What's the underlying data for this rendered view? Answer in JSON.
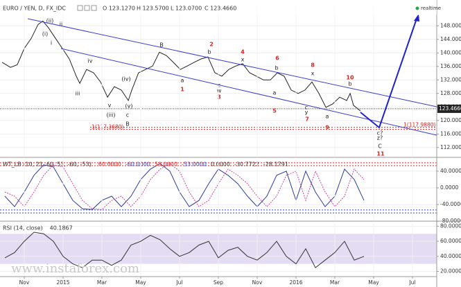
{
  "header": {
    "symbol": "EURO / YEN, D, FX_IDC",
    "ohlc": [
      "O 123.1270",
      "H 123.5700",
      "L 123.0700",
      "C 123.4660"
    ],
    "status": "realtime",
    "watermark": "www.instaforex.com"
  },
  "chart_data": [
    {
      "type": "line",
      "xlim": [
        -1.25,
        21.25
      ],
      "ylim": [
        109.5,
        154
      ],
      "yticks": [
        {
          "value": 112,
          "label": "112.0000"
        },
        {
          "value": 116,
          "label": "116.0000"
        },
        {
          "value": 120,
          "label": "120.0000"
        },
        {
          "value": 124,
          "label": "124.0000"
        },
        {
          "value": 128,
          "label": "128.0000"
        },
        {
          "value": 132,
          "label": "132.0000"
        },
        {
          "value": 136,
          "label": "136.0000"
        },
        {
          "value": 140,
          "label": "140.0000"
        },
        {
          "value": 144,
          "label": "144.0000"
        },
        {
          "value": 148,
          "label": "148.0000"
        }
      ],
      "grid": true,
      "x": [
        -1.14,
        -0.71,
        -0.36,
        0,
        0.36,
        0.71,
        0.96,
        1.25,
        1.61,
        1.96,
        2.32,
        2.68,
        2.86,
        3.21,
        3.57,
        3.93,
        4.29,
        4.64,
        5.0,
        5.36,
        5.54,
        5.89,
        6.25,
        6.61,
        6.96,
        7.32,
        7.68,
        8.04,
        8.39,
        8.75,
        9.11,
        9.46,
        9.82,
        10.18,
        10.54,
        10.89,
        11.25,
        11.61,
        11.96,
        12.32,
        12.68,
        13.04,
        13.39,
        13.75,
        14.11,
        14.46,
        14.82,
        15.18,
        15.54,
        15.89,
        16.25,
        16.61,
        16.79,
        16.96,
        17.32
      ],
      "series": [
        {
          "name": "EURO / YEN",
          "color": "#222222",
          "values": [
            137.2,
            135.7,
            136.5,
            141.3,
            144.3,
            148.4,
            149.4,
            147.4,
            144.3,
            141.3,
            138.2,
            133.1,
            131.0,
            135.1,
            134.1,
            131.4,
            126.9,
            130.0,
            129.0,
            125.9,
            129.0,
            134.1,
            135.1,
            136.1,
            140.2,
            139.2,
            137.2,
            135.1,
            136.1,
            137.2,
            138.2,
            138.8,
            134.1,
            133.1,
            135.1,
            136.1,
            136.8,
            134.1,
            133.1,
            132.0,
            132.0,
            134.1,
            133.1,
            129.0,
            128.0,
            129.0,
            131.4,
            128.0,
            123.9,
            124.9,
            126.9,
            125.9,
            128.0,
            124.5,
            122.8
          ]
        }
      ],
      "last": {
        "value": 123.466,
        "label": "123.4660"
      },
      "levels": [
        {
          "value": 117.368,
          "label": "1(117.3680)",
          "color": "#e02020"
        },
        {
          "value": 117.988,
          "label": "1(117.9880)",
          "color": "#e02020"
        }
      ],
      "annotations": [
        {
          "text": "(ii)",
          "color": "#222222"
        },
        {
          "text": "(i)",
          "color": "#222222"
        },
        {
          "text": "ii",
          "color": "#222222"
        },
        {
          "text": "i",
          "color": "#222222"
        },
        {
          "text": "iii",
          "color": "#222222"
        },
        {
          "text": "iv",
          "color": "#222222"
        },
        {
          "text": "(iii)",
          "color": "#222222"
        },
        {
          "text": "(iv)",
          "color": "#222222"
        },
        {
          "text": "v",
          "color": "#222222"
        },
        {
          "text": "(v)",
          "color": "#222222"
        },
        {
          "text": "c",
          "color": "#222222"
        },
        {
          "text": "B",
          "color": "#222222"
        },
        {
          "text": "B",
          "color": "#222222"
        },
        {
          "text": "2",
          "color": "#e02020"
        },
        {
          "text": "b",
          "color": "#222222"
        },
        {
          "text": "a",
          "color": "#222222"
        },
        {
          "text": "1",
          "color": "#e02020"
        },
        {
          "text": "c",
          "color": "#222222"
        },
        {
          "text": "w",
          "color": "#222222"
        },
        {
          "text": "3",
          "color": "#e02020"
        },
        {
          "text": "4",
          "color": "#e02020"
        },
        {
          "text": "x",
          "color": "#222222"
        },
        {
          "text": "6",
          "color": "#e02020"
        },
        {
          "text": "b",
          "color": "#222222"
        },
        {
          "text": "a",
          "color": "#222222"
        },
        {
          "text": "5",
          "color": "#e02020"
        },
        {
          "text": "8",
          "color": "#e02020"
        },
        {
          "text": "x",
          "color": "#222222"
        },
        {
          "text": "c",
          "color": "#222222"
        },
        {
          "text": "y",
          "color": "#222222"
        },
        {
          "text": "7",
          "color": "#e02020"
        },
        {
          "text": "a",
          "color": "#222222"
        },
        {
          "text": "10",
          "color": "#e02020"
        },
        {
          "text": "b",
          "color": "#222222"
        },
        {
          "text": "9",
          "color": "#e02020"
        },
        {
          "text": "c?",
          "color": "#222222"
        },
        {
          "text": "z?",
          "color": "#222222"
        },
        {
          "text": "C",
          "color": "#222222"
        },
        {
          "text": "11",
          "color": "#e02020"
        }
      ]
    },
    {
      "type": "line",
      "title": "WT_LB (10, 21, 60, 53, -60, -53)",
      "readouts": [
        "0.0000",
        "-30.7722",
        "-28.1791"
      ],
      "xlim": [
        -1.25,
        21.25
      ],
      "ylim": [
        -78,
        68
      ],
      "yticks": [
        {
          "value": 40,
          "label": "40.0000"
        },
        {
          "value": 0,
          "label": "0.0000"
        },
        {
          "value": -40,
          "label": "-40.0000"
        },
        {
          "value": -80,
          "label": "-80.0000"
        }
      ],
      "grid": true,
      "levels": [
        {
          "value": 60,
          "label": "60.0000",
          "color": "#e02020"
        },
        {
          "value": -60,
          "label": "-60.0000",
          "color": "#3040c0"
        },
        {
          "value": 53,
          "label": "53.0000",
          "color": "#e02020"
        },
        {
          "value": -53,
          "label": "-53.0000",
          "color": "#3040c0"
        }
      ],
      "x": [
        -1,
        -0.5,
        0,
        0.5,
        1,
        1.5,
        2,
        2.5,
        3,
        3.5,
        4,
        4.5,
        5,
        5.5,
        6,
        6.5,
        7,
        7.5,
        8,
        8.5,
        9,
        9.5,
        10,
        10.5,
        11,
        11.5,
        12,
        12.5,
        13,
        13.5,
        14,
        14.5,
        15,
        15.5,
        16,
        16.5,
        17,
        17.5
      ],
      "series": [
        {
          "name": "WT1",
          "color": "#2b3a9a",
          "dash": false,
          "values": [
            -20,
            -45,
            -10,
            30,
            55,
            50,
            10,
            -30,
            -50,
            -52,
            -30,
            -20,
            -45,
            -20,
            20,
            45,
            58,
            40,
            -10,
            -45,
            -30,
            10,
            45,
            30,
            10,
            -20,
            -45,
            -20,
            30,
            40,
            -30,
            40,
            -10,
            -45,
            -20,
            45,
            20,
            -30
          ]
        },
        {
          "name": "WT2",
          "color": "#d040a0",
          "dash": true,
          "values": [
            -10,
            -20,
            -45,
            -10,
            30,
            55,
            50,
            10,
            -30,
            -50,
            -52,
            -30,
            -20,
            -45,
            -20,
            20,
            45,
            58,
            40,
            -10,
            -45,
            -30,
            10,
            45,
            30,
            10,
            -20,
            -45,
            -20,
            30,
            40,
            -30,
            40,
            -10,
            -45,
            -20,
            45,
            20
          ]
        }
      ]
    },
    {
      "type": "line",
      "title": "RSI (14, close)",
      "readouts": [
        "40.1867"
      ],
      "xlim": [
        -1.25,
        21.25
      ],
      "ylim": [
        14,
        84
      ],
      "yticks": [
        {
          "value": 80,
          "label": "80.0000"
        },
        {
          "value": 60,
          "label": "60.0000"
        },
        {
          "value": 40,
          "label": "40.0000"
        },
        {
          "value": 20,
          "label": "20.0000"
        }
      ],
      "grid": true,
      "band": [
        30,
        70
      ],
      "xticks": [
        {
          "value": 0,
          "label": "Nov"
        },
        {
          "value": 2,
          "label": "2015"
        },
        {
          "value": 4,
          "label": "Mar"
        },
        {
          "value": 6,
          "label": "May"
        },
        {
          "value": 8,
          "label": "Jul"
        },
        {
          "value": 10,
          "label": "Sep"
        },
        {
          "value": 12,
          "label": "Nov"
        },
        {
          "value": 14,
          "label": "2016"
        },
        {
          "value": 16,
          "label": "Mar"
        },
        {
          "value": 18,
          "label": "May"
        },
        {
          "value": 20,
          "label": "Jul"
        }
      ],
      "x": [
        -1,
        -0.5,
        0,
        0.5,
        1,
        1.5,
        2,
        2.5,
        3,
        3.5,
        4,
        4.5,
        5,
        5.5,
        6,
        6.5,
        7,
        7.5,
        8,
        8.5,
        9,
        9.5,
        10,
        10.5,
        11,
        11.5,
        12,
        12.5,
        13,
        13.5,
        14,
        14.5,
        15,
        15.5,
        16,
        16.5,
        17,
        17.5
      ],
      "series": [
        {
          "name": "RSI",
          "color": "#333333",
          "dash": false,
          "values": [
            38,
            45,
            60,
            72,
            70,
            60,
            40,
            30,
            25,
            35,
            35,
            28,
            35,
            55,
            60,
            68,
            62,
            50,
            40,
            45,
            55,
            60,
            38,
            48,
            52,
            40,
            35,
            45,
            60,
            40,
            30,
            50,
            25,
            35,
            45,
            60,
            35,
            40
          ]
        }
      ]
    }
  ]
}
